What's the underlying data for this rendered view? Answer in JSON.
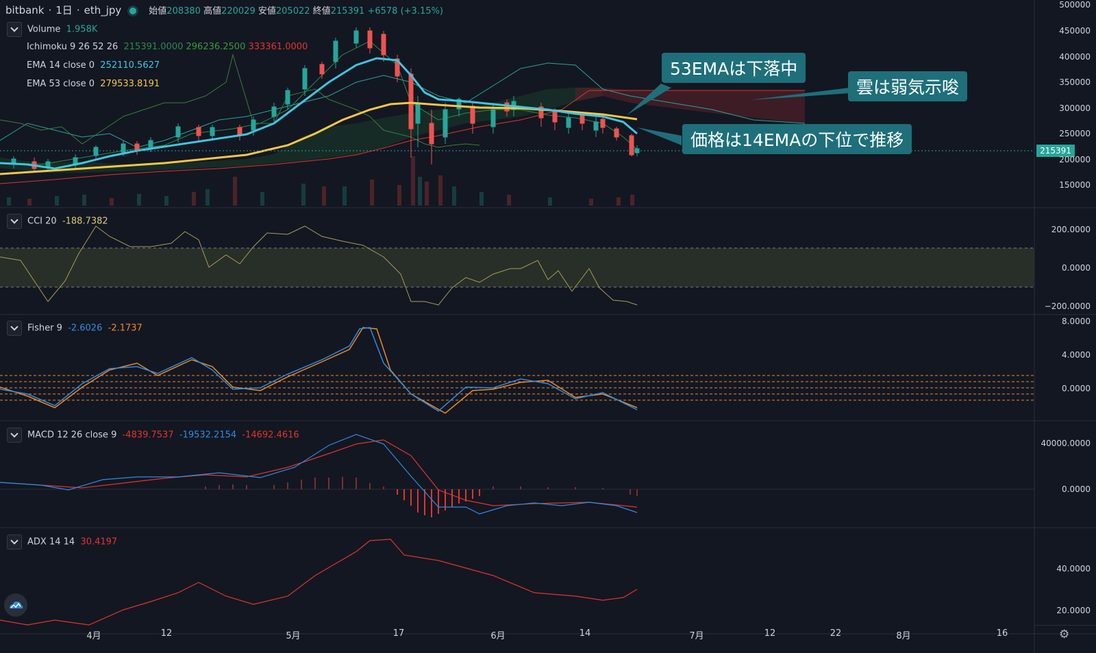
{
  "header": {
    "exchange": "bitbank",
    "interval": "1日",
    "symbol": "eth_jpy",
    "open_label": "始値",
    "open": "208380",
    "high_label": "高値",
    "high": "220029",
    "low_label": "安値",
    "low": "205022",
    "close_label": "終値",
    "close": "215391",
    "change": "+6578 (+3.15%)"
  },
  "legends": {
    "volume": {
      "name": "Volume",
      "value": "1.958K"
    },
    "ichimoku": {
      "name": "Ichimoku 9 26 52 26",
      "v1": "215391.0000",
      "v2": "296236.2500",
      "v3": "333361.0000"
    },
    "ema14": {
      "name": "EMA 14 close 0",
      "value": "252110.5627"
    },
    "ema53": {
      "name": "EMA 53 close 0",
      "value": "279533.8191"
    },
    "cci": {
      "name": "CCI 20",
      "value": "-188.7382"
    },
    "fisher": {
      "name": "Fisher 9",
      "v1": "-2.6026",
      "v2": "-2.1737"
    },
    "macd": {
      "name": "MACD 12 26 close 9",
      "v1": "-4839.7537",
      "v2": "-19532.2154",
      "v3": "-14692.4616"
    },
    "adx": {
      "name": "ADX 14 14",
      "value": "30.4197"
    }
  },
  "callouts": {
    "ema53": "53EMAは下落中",
    "cloud": "雲は弱気示唆",
    "price": "価格は14EMAの下位で推移"
  },
  "price_tag": "215391",
  "y_axis": {
    "price": [
      "500000",
      "450000",
      "400000",
      "350000",
      "300000",
      "250000",
      "200000",
      "150000"
    ],
    "cci": [
      "200.0000",
      "0.0000",
      "−200.0000"
    ],
    "fisher": [
      "8.0000",
      "4.0000",
      "0.0000"
    ],
    "macd": [
      "40000.0000",
      "0.0000"
    ],
    "adx": [
      "40.0000",
      "20.0000"
    ]
  },
  "x_axis": [
    "4月",
    "12",
    "5月",
    "17",
    "6月",
    "14",
    "7月",
    "12",
    "22",
    "8月",
    "16"
  ],
  "colors": {
    "background": "#131722",
    "up": "#26a69a",
    "down": "#ef5350",
    "ema14": "#3ec6e0",
    "ema53": "#f5c842",
    "callout": "#1e6f7a",
    "cci": "#a89c5a",
    "fisher": "#2f8ce0",
    "fisher_trigger": "#f08a24",
    "macd": "#2f8ce0",
    "signal": "#e0352b",
    "adx": "#e0352b"
  },
  "icons": {
    "logo": "tradingview-cloud-logo-icon",
    "settings": "gear-icon",
    "collapse": "chevron-down-icon"
  }
}
